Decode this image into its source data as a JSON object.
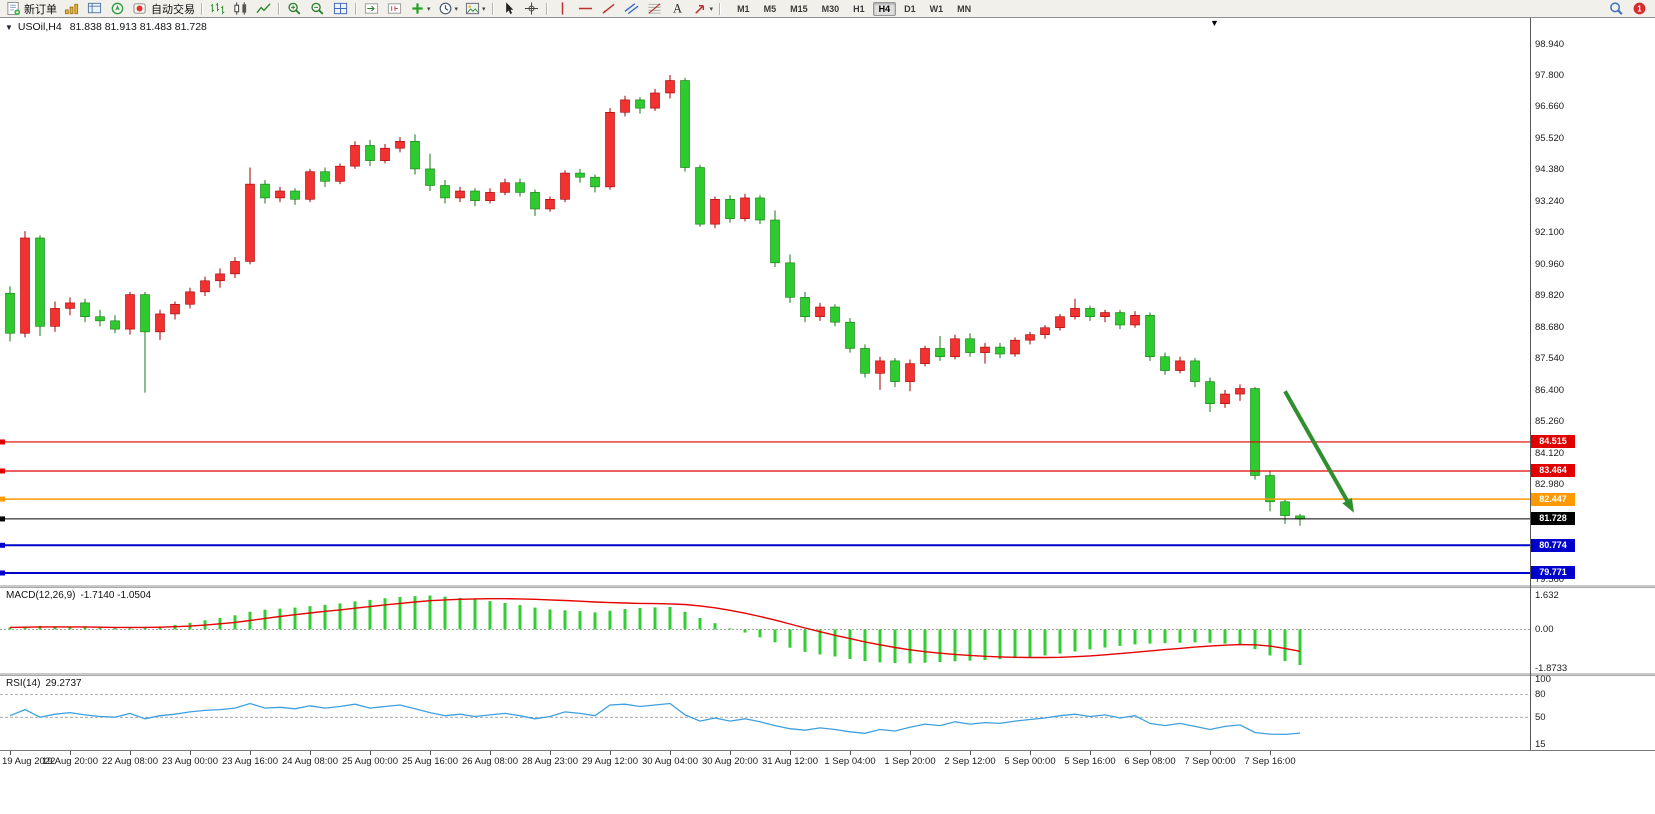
{
  "glyphs": {
    "dropdown": "▾",
    "chart_menu": "▼",
    "chart_shift": "▼"
  },
  "colors": {
    "background": "#ffffff",
    "toolbar": "#f1f0ea",
    "candle_up": "#f23131",
    "candle_up_dark": "#a30000",
    "candle_down": "#2ecb2e",
    "candle_down_dark": "#157a15",
    "arrow_annotation": "#2f8f2f"
  },
  "toolbar": {
    "items": [
      {
        "name": "new-order-button",
        "icon": "new-order",
        "label": "新订单"
      },
      {
        "name": "market-watch-button",
        "icon": "market-watch"
      },
      {
        "name": "data-window-button",
        "icon": "data-window"
      },
      {
        "name": "navigator-button",
        "icon": "navigator"
      },
      {
        "name": "auto-trading-button",
        "icon": "auto-trading",
        "label": "自动交易"
      },
      {
        "type": "sep"
      },
      {
        "name": "bar-chart-button",
        "icon": "bar-chart"
      },
      {
        "name": "candlestick-chart-button",
        "icon": "candlestick"
      },
      {
        "name": "line-chart-button",
        "icon": "line-chart"
      },
      {
        "type": "sep"
      },
      {
        "name": "zoom-in-button",
        "icon": "zoom-in"
      },
      {
        "name": "zoom-out-button",
        "icon": "zoom-out"
      },
      {
        "name": "tile-windows-button",
        "icon": "tile-windows"
      },
      {
        "type": "sep"
      },
      {
        "name": "auto-scroll-button",
        "icon": "auto-scroll"
      },
      {
        "name": "chart-shift-button",
        "icon": "chart-shift"
      },
      {
        "name": "add-indicator-button",
        "icon": "add-indicator",
        "dropdown": true
      },
      {
        "name": "period-button",
        "icon": "period",
        "dropdown": true
      },
      {
        "name": "template-button",
        "icon": "template",
        "dropdown": true
      },
      {
        "type": "sep"
      },
      {
        "name": "cursor-button",
        "icon": "cursor"
      },
      {
        "name": "crosshair-button",
        "icon": "crosshair"
      },
      {
        "type": "sep"
      },
      {
        "name": "vertical-line-button",
        "icon": "vertical-line"
      },
      {
        "name": "horizontal-line-button",
        "icon": "horizontal-line"
      },
      {
        "name": "trendline-button",
        "icon": "trendline"
      },
      {
        "name": "channel-button",
        "icon": "channel"
      },
      {
        "name": "fibonacci-button",
        "icon": "fibonacci"
      },
      {
        "name": "text-button",
        "icon": "text"
      },
      {
        "name": "arrows-button",
        "icon": "arrows",
        "dropdown": true
      },
      {
        "type": "sep"
      }
    ],
    "timeframes": [
      "M1",
      "M5",
      "M15",
      "M30",
      "H1",
      "H4",
      "D1",
      "W1",
      "MN"
    ],
    "active_timeframe": "H4",
    "right_buttons": [
      {
        "name": "search-button",
        "icon": "search"
      },
      {
        "name": "notifications-button",
        "icon": "alert"
      }
    ]
  },
  "chart_data": [
    {
      "type": "candlestick",
      "symbol": "USOil",
      "period": "H4",
      "title": "USOil,H4",
      "ohlc_text": "81.838 81.913 81.483 81.728",
      "current_ohlc": {
        "open": 81.838,
        "high": 81.913,
        "low": 81.483,
        "close": 81.728
      },
      "ylim": [
        79.3,
        99.9
      ],
      "y_ticks": [
        "98.940",
        "97.800",
        "96.660",
        "95.520",
        "94.380",
        "93.240",
        "92.100",
        "90.960",
        "89.820",
        "88.680",
        "87.540",
        "86.400",
        "85.260",
        "84.120",
        "82.980",
        "81.840",
        "80.700",
        "79.560"
      ],
      "x_label_step": 4,
      "x_labels": [
        "19 Aug 2022",
        "19 Aug 20:00",
        "22 Aug 08:00",
        "23 Aug 00:00",
        "23 Aug 16:00",
        "24 Aug 08:00",
        "25 Aug 00:00",
        "25 Aug 16:00",
        "26 Aug 08:00",
        "28 Aug 23:00",
        "29 Aug 12:00",
        "30 Aug 04:00",
        "30 Aug 20:00",
        "31 Aug 12:00",
        "1 Sep 04:00",
        "1 Sep 20:00",
        "2 Sep 12:00",
        "5 Sep 00:00",
        "5 Sep 16:00",
        "6 Sep 08:00",
        "7 Sep 00:00",
        "7 Sep 16:00"
      ],
      "candles": [
        [
          89.9,
          90.15,
          88.15,
          88.45
        ],
        [
          88.45,
          92.15,
          88.3,
          91.9
        ],
        [
          91.9,
          92.0,
          88.35,
          88.7
        ],
        [
          88.7,
          89.6,
          88.5,
          89.35
        ],
        [
          89.35,
          89.75,
          89.1,
          89.55
        ],
        [
          89.55,
          89.7,
          88.85,
          89.05
        ],
        [
          89.05,
          89.3,
          88.7,
          88.9
        ],
        [
          88.9,
          89.1,
          88.45,
          88.6
        ],
        [
          88.6,
          89.95,
          88.4,
          89.85
        ],
        [
          89.85,
          89.95,
          86.3,
          88.5
        ],
        [
          88.5,
          89.3,
          88.2,
          89.15
        ],
        [
          89.15,
          89.6,
          88.95,
          89.5
        ],
        [
          89.5,
          90.1,
          89.35,
          89.95
        ],
        [
          89.95,
          90.5,
          89.8,
          90.35
        ],
        [
          90.35,
          90.8,
          90.1,
          90.6
        ],
        [
          90.6,
          91.2,
          90.45,
          91.05
        ],
        [
          91.05,
          94.45,
          90.95,
          93.85
        ],
        [
          93.85,
          94.0,
          93.15,
          93.35
        ],
        [
          93.35,
          93.75,
          93.2,
          93.6
        ],
        [
          93.6,
          93.7,
          93.1,
          93.3
        ],
        [
          93.3,
          94.4,
          93.2,
          94.3
        ],
        [
          94.3,
          94.45,
          93.75,
          93.95
        ],
        [
          93.95,
          94.6,
          93.85,
          94.5
        ],
        [
          94.5,
          95.4,
          94.4,
          95.25
        ],
        [
          95.25,
          95.45,
          94.5,
          94.7
        ],
        [
          94.7,
          95.3,
          94.6,
          95.15
        ],
        [
          95.15,
          95.55,
          95.0,
          95.4
        ],
        [
          95.4,
          95.65,
          94.2,
          94.4
        ],
        [
          94.4,
          94.95,
          93.6,
          93.8
        ],
        [
          93.8,
          94.0,
          93.15,
          93.35
        ],
        [
          93.35,
          93.75,
          93.2,
          93.6
        ],
        [
          93.6,
          93.7,
          93.05,
          93.25
        ],
        [
          93.25,
          93.7,
          93.15,
          93.55
        ],
        [
          93.55,
          94.05,
          93.45,
          93.9
        ],
        [
          93.9,
          94.05,
          93.4,
          93.55
        ],
        [
          93.55,
          93.65,
          92.7,
          92.95
        ],
        [
          92.95,
          93.4,
          92.85,
          93.3
        ],
        [
          93.3,
          94.35,
          93.2,
          94.25
        ],
        [
          94.25,
          94.4,
          93.9,
          94.1
        ],
        [
          94.1,
          94.2,
          93.55,
          93.75
        ],
        [
          93.75,
          96.6,
          93.65,
          96.45
        ],
        [
          96.45,
          97.05,
          96.3,
          96.9
        ],
        [
          96.9,
          97.0,
          96.4,
          96.6
        ],
        [
          96.6,
          97.3,
          96.5,
          97.15
        ],
        [
          97.15,
          97.8,
          96.95,
          97.6
        ],
        [
          97.6,
          97.7,
          94.3,
          94.45
        ],
        [
          94.45,
          94.55,
          92.3,
          92.4
        ],
        [
          92.4,
          93.4,
          92.25,
          93.3
        ],
        [
          93.3,
          93.45,
          92.45,
          92.6
        ],
        [
          92.6,
          93.5,
          92.5,
          93.35
        ],
        [
          93.35,
          93.45,
          92.4,
          92.55
        ],
        [
          92.55,
          92.9,
          90.85,
          91.0
        ],
        [
          91.0,
          91.3,
          89.55,
          89.75
        ],
        [
          89.75,
          89.95,
          88.85,
          89.05
        ],
        [
          89.05,
          89.55,
          88.9,
          89.4
        ],
        [
          89.4,
          89.5,
          88.7,
          88.85
        ],
        [
          88.85,
          89.0,
          87.75,
          87.9
        ],
        [
          87.9,
          88.05,
          86.85,
          87.0
        ],
        [
          87.0,
          87.6,
          86.4,
          87.45
        ],
        [
          87.45,
          87.55,
          86.5,
          86.7
        ],
        [
          86.7,
          87.5,
          86.35,
          87.35
        ],
        [
          87.35,
          88.0,
          87.25,
          87.9
        ],
        [
          87.9,
          88.35,
          87.45,
          87.6
        ],
        [
          87.6,
          88.4,
          87.5,
          88.25
        ],
        [
          88.25,
          88.45,
          87.6,
          87.75
        ],
        [
          87.75,
          88.1,
          87.35,
          87.95
        ],
        [
          87.95,
          88.1,
          87.55,
          87.7
        ],
        [
          87.7,
          88.3,
          87.6,
          88.2
        ],
        [
          88.2,
          88.5,
          88.05,
          88.4
        ],
        [
          88.4,
          88.75,
          88.25,
          88.65
        ],
        [
          88.65,
          89.15,
          88.55,
          89.05
        ],
        [
          89.05,
          89.7,
          88.95,
          89.35
        ],
        [
          89.35,
          89.45,
          88.9,
          89.05
        ],
        [
          89.05,
          89.3,
          88.85,
          89.2
        ],
        [
          89.2,
          89.3,
          88.6,
          88.75
        ],
        [
          88.75,
          89.25,
          88.65,
          89.1
        ],
        [
          89.1,
          89.2,
          87.45,
          87.6
        ],
        [
          87.6,
          87.75,
          86.95,
          87.1
        ],
        [
          87.1,
          87.6,
          87.0,
          87.45
        ],
        [
          87.45,
          87.55,
          86.5,
          86.7
        ],
        [
          86.7,
          86.85,
          85.6,
          85.9
        ],
        [
          85.9,
          86.4,
          85.75,
          86.25
        ],
        [
          86.25,
          86.6,
          86.0,
          86.45
        ],
        [
          86.45,
          86.5,
          83.15,
          83.3
        ],
        [
          83.3,
          83.45,
          82.0,
          82.35
        ],
        [
          82.35,
          82.45,
          81.55,
          81.85
        ],
        [
          81.838,
          81.913,
          81.483,
          81.728
        ]
      ],
      "price_lines": [
        {
          "label": "84.515",
          "value": 84.515,
          "color": "#e00000",
          "width": 1.2
        },
        {
          "label": "83.464",
          "value": 83.464,
          "color": "#e00000",
          "width": 1.2
        },
        {
          "label": "82.447",
          "value": 82.447,
          "color": "#ff9900",
          "width": 1.5
        },
        {
          "label": "81.728",
          "value": 81.728,
          "color": "#000000",
          "width": 1,
          "kind": "bid"
        },
        {
          "label": "80.774",
          "value": 80.774,
          "color": "#0000cc",
          "width": 2
        },
        {
          "label": "79.771",
          "value": 79.771,
          "color": "#0000cc",
          "width": 2
        }
      ],
      "arrow": {
        "x1_bar": 85,
        "price1": 86.35,
        "x2_bar": 89.6,
        "price2": 81.95,
        "color": "#2f8f2f"
      }
    },
    {
      "type": "bar",
      "name": "MACD(12,26,9)",
      "values_text": "-1.7140 -1.0504",
      "current_values": [
        -1.714,
        -1.0504
      ],
      "ylim": [
        -1.95,
        1.8
      ],
      "y_ticks": [
        "1.632",
        "0.00",
        "-1.8733"
      ],
      "histogram_color": "#32cd32",
      "signal_color": "#e60000",
      "histogram": [
        0.1,
        0.13,
        0.17,
        0.15,
        0.13,
        0.11,
        0.09,
        0.07,
        0.06,
        0.08,
        0.14,
        0.22,
        0.32,
        0.44,
        0.55,
        0.68,
        0.85,
        0.95,
        1.0,
        1.05,
        1.12,
        1.18,
        1.25,
        1.35,
        1.42,
        1.5,
        1.56,
        1.6,
        1.63,
        1.58,
        1.52,
        1.44,
        1.36,
        1.27,
        1.17,
        1.05,
        0.96,
        0.92,
        0.88,
        0.82,
        0.9,
        0.98,
        1.03,
        1.06,
        1.08,
        0.85,
        0.55,
        0.3,
        0.05,
        -0.15,
        -0.38,
        -0.62,
        -0.88,
        -1.08,
        -1.2,
        -1.3,
        -1.42,
        -1.52,
        -1.58,
        -1.62,
        -1.63,
        -1.6,
        -1.57,
        -1.53,
        -1.5,
        -1.47,
        -1.43,
        -1.38,
        -1.32,
        -1.25,
        -1.16,
        -1.06,
        -0.96,
        -0.87,
        -0.79,
        -0.72,
        -0.68,
        -0.66,
        -0.64,
        -0.62,
        -0.64,
        -0.68,
        -0.74,
        -0.95,
        -1.25,
        -1.52,
        -1.714
      ],
      "signal": [
        0.1,
        0.11,
        0.12,
        0.12,
        0.12,
        0.12,
        0.11,
        0.1,
        0.1,
        0.1,
        0.11,
        0.13,
        0.16,
        0.21,
        0.27,
        0.34,
        0.43,
        0.53,
        0.62,
        0.71,
        0.79,
        0.87,
        0.94,
        1.02,
        1.1,
        1.18,
        1.25,
        1.32,
        1.38,
        1.42,
        1.45,
        1.47,
        1.48,
        1.48,
        1.47,
        1.45,
        1.42,
        1.39,
        1.36,
        1.32,
        1.29,
        1.27,
        1.25,
        1.24,
        1.23,
        1.2,
        1.13,
        1.04,
        0.92,
        0.78,
        0.62,
        0.45,
        0.26,
        0.07,
        -0.11,
        -0.28,
        -0.44,
        -0.6,
        -0.74,
        -0.87,
        -0.98,
        -1.07,
        -1.14,
        -1.2,
        -1.25,
        -1.29,
        -1.32,
        -1.34,
        -1.35,
        -1.35,
        -1.34,
        -1.31,
        -1.27,
        -1.22,
        -1.16,
        -1.1,
        -1.03,
        -0.97,
        -0.91,
        -0.85,
        -0.8,
        -0.76,
        -0.73,
        -0.74,
        -0.8,
        -0.91,
        -1.05
      ]
    },
    {
      "type": "line",
      "name": "RSI(14)",
      "value_text": "29.2737",
      "current_value": 29.2737,
      "ylim": [
        15,
        100
      ],
      "y_ticks": [
        "100",
        "80",
        "50",
        "15"
      ],
      "levels": [
        80,
        50
      ],
      "line_color": "#3fa0e0",
      "values": [
        52,
        60,
        50,
        54,
        56,
        53,
        51,
        50,
        55,
        48,
        52,
        54,
        57,
        59,
        60,
        62,
        68,
        62,
        63,
        61,
        65,
        62,
        64,
        67,
        62,
        64,
        66,
        61,
        56,
        52,
        54,
        51,
        53,
        55,
        52,
        48,
        51,
        57,
        55,
        52,
        66,
        67,
        64,
        66,
        68,
        53,
        45,
        49,
        45,
        48,
        44,
        39,
        35,
        33,
        36,
        34,
        31,
        29,
        34,
        32,
        37,
        41,
        39,
        44,
        41,
        43,
        42,
        45,
        47,
        49,
        52,
        54,
        51,
        53,
        49,
        52,
        42,
        39,
        42,
        38,
        34,
        38,
        40,
        30,
        28,
        27.5,
        29.27
      ]
    }
  ]
}
